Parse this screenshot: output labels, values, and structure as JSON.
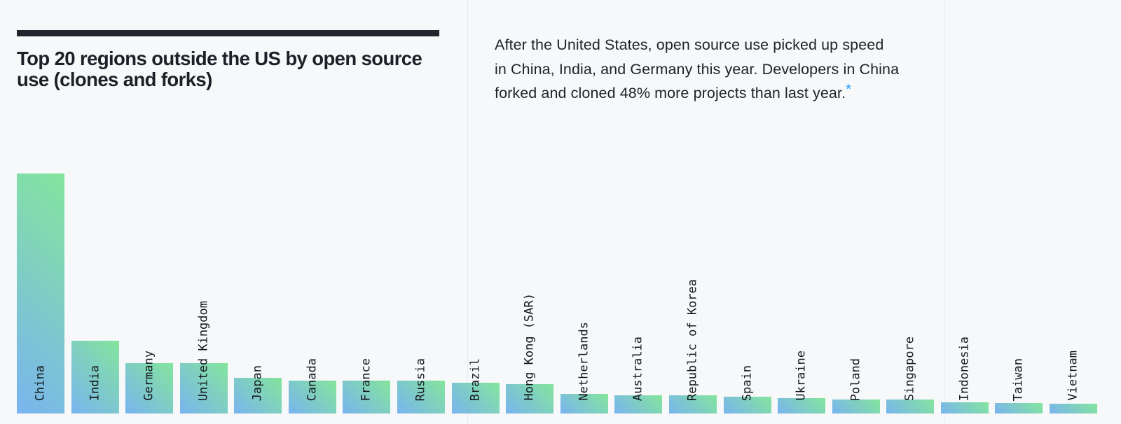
{
  "theme": {
    "background": "#f6f8fa",
    "divider": "#e8eaed",
    "title_color": "#1c2127",
    "rule_color": "#21262c",
    "text_color": "#1f2328",
    "footnote_blue": "#2f9aff",
    "bar_gradient_start": "#79b4ef",
    "bar_gradient_end": "#84e59c",
    "bar_label_color": "#15181c"
  },
  "header": {
    "title_lines": {
      "line1": "Top 20 regions outside the US by open source",
      "line2": "use (clones and forks)"
    }
  },
  "paragraph": {
    "lines": {
      "line1": "After the United States, open source use picked up speed",
      "line2": "in China, India, and Germany this year. Developers in China",
      "line3": "forked and cloned 48% more projects than last year."
    },
    "footnote_marker": "*"
  },
  "chart_data": {
    "type": "bar",
    "title": "Top 20 regions outside the US by open source use (clones and forks)",
    "categories": [
      "China",
      "India",
      "Germany",
      "United Kingdom",
      "Japan",
      "Canada",
      "France",
      "Russia",
      "Brazil",
      "Hong Kong (SAR)",
      "Netherlands",
      "Australia",
      "Republic of Korea",
      "Spain",
      "Ukraine",
      "Poland",
      "Singapore",
      "Indonesia",
      "Taiwan",
      "Vietnam"
    ],
    "values": [
      343,
      104,
      72,
      72,
      51,
      47,
      47,
      47,
      44,
      42,
      28,
      26,
      26,
      24,
      22,
      20,
      20,
      16,
      15,
      14
    ],
    "value_note": "no numeric axis shown; values are relative bar heights in screen pixels",
    "xlabel": "",
    "ylabel": "",
    "grid": false,
    "legend": "none",
    "bar_label_style": "category names rotated -90 degrees, anchored near bar base",
    "bar_gradient": [
      "#79b4ef",
      "#84e59c"
    ]
  }
}
